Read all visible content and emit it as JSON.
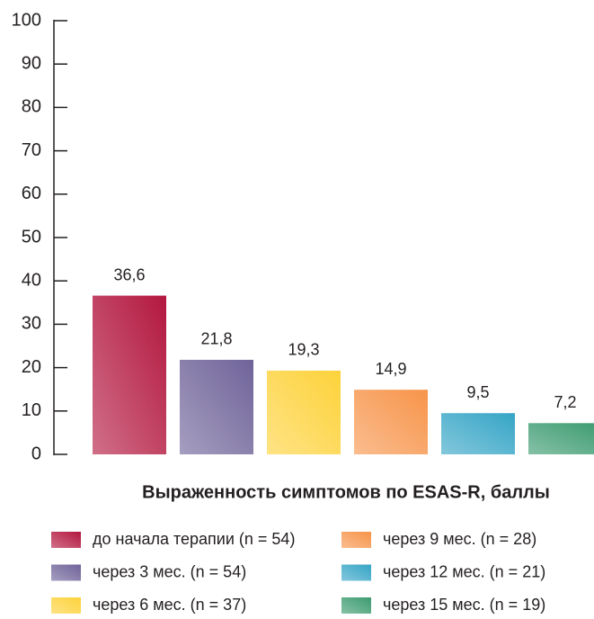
{
  "chart_data": {
    "type": "bar",
    "x_label": "Выраженность симптомов по ESAS-R, баллы",
    "ylim": [
      0,
      100
    ],
    "yticks": [
      0,
      10,
      20,
      30,
      40,
      50,
      60,
      70,
      80,
      90,
      100
    ],
    "legend": "bottom",
    "series": [
      {
        "name": "до начала терапии (n = 54)",
        "color": "#b3173f",
        "values": [
          36.6
        ],
        "value_labels": [
          "36,6"
        ]
      },
      {
        "name": "через 3 мес. (n = 54)",
        "color": "#6f6399",
        "values": [
          21.8
        ],
        "value_labels": [
          "21,8"
        ]
      },
      {
        "name": "через 6 мес. (n = 37)",
        "color": "#fdd23a",
        "values": [
          19.3
        ],
        "value_labels": [
          "19,3"
        ]
      },
      {
        "name": "через 9 мес. (n = 28)",
        "color": "#f7944a",
        "values": [
          14.9
        ],
        "value_labels": [
          "14,9"
        ]
      },
      {
        "name": "через 12 мес. (n = 21)",
        "color": "#36a5c6",
        "values": [
          9.5
        ],
        "value_labels": [
          "9,5"
        ]
      },
      {
        "name": "через 15 мес. (n = 19)",
        "color": "#3c9b70",
        "values": [
          7.2
        ],
        "value_labels": [
          "7,2"
        ]
      }
    ]
  }
}
